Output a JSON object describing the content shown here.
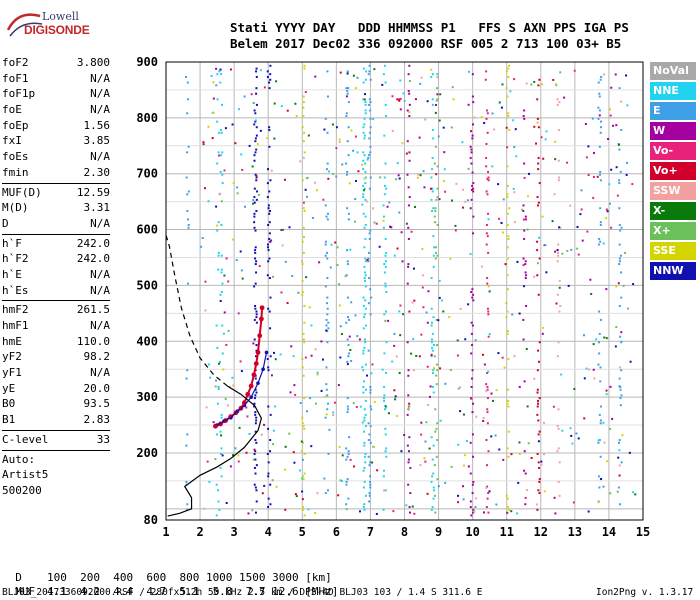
{
  "header": {
    "labels": "Stati YYYY DAY   DDD HHMMSS P1   FFS S AXN PPS IGA PS",
    "values": "Belem 2017 Dec02 336 092000 RSF 005 2 713 100 03+ B5"
  },
  "logo": {
    "line1": "Lowell",
    "line2": "DIGISONDE"
  },
  "parameters": [
    {
      "name": "foF2",
      "value": "3.800"
    },
    {
      "name": "foF1",
      "value": "N/A"
    },
    {
      "name": "foF1p",
      "value": "N/A"
    },
    {
      "name": "foE",
      "value": "N/A"
    },
    {
      "name": "foEp",
      "value": "1.56"
    },
    {
      "name": "fxI",
      "value": "3.85"
    },
    {
      "name": "foEs",
      "value": "N/A"
    },
    {
      "name": "fmin",
      "value": "2.30"
    },
    {
      "divider": true
    },
    {
      "name": "MUF(D)",
      "value": "12.59"
    },
    {
      "name": "M(D)",
      "value": "3.31"
    },
    {
      "name": "D",
      "value": "N/A"
    },
    {
      "divider": true
    },
    {
      "name": "h`F",
      "value": "242.0"
    },
    {
      "name": "h`F2",
      "value": "242.0"
    },
    {
      "name": "h`E",
      "value": "N/A"
    },
    {
      "name": "h`Es",
      "value": "N/A"
    },
    {
      "divider": true
    },
    {
      "name": "hmF2",
      "value": "261.5"
    },
    {
      "name": "hmF1",
      "value": "N/A"
    },
    {
      "name": "hmE",
      "value": "110.0"
    },
    {
      "name": "yF2",
      "value": "98.2"
    },
    {
      "name": "yF1",
      "value": "N/A"
    },
    {
      "name": "yE",
      "value": "20.0"
    },
    {
      "name": "B0",
      "value": "93.5"
    },
    {
      "name": "B1",
      "value": "2.83"
    },
    {
      "divider": true
    },
    {
      "name": "C-level",
      "value": "33"
    },
    {
      "divider": true
    },
    {
      "text": "Auto:"
    },
    {
      "text": "Artist5"
    },
    {
      "text": "500200"
    }
  ],
  "legend": [
    {
      "label": "NoVal",
      "color": "#a9a9a9"
    },
    {
      "label": "NNE",
      "color": "#22d3f0"
    },
    {
      "label": "E",
      "color": "#3fa0e8"
    },
    {
      "label": "W",
      "color": "#a3009f"
    },
    {
      "label": "Vo-",
      "color": "#e8217a"
    },
    {
      "label": "Vo+",
      "color": "#d0002a"
    },
    {
      "label": "SSW",
      "color": "#f2a0a0"
    },
    {
      "label": "X-",
      "color": "#0a7a0a"
    },
    {
      "label": "X+",
      "color": "#6cc05c"
    },
    {
      "label": "SSE",
      "color": "#d4d400"
    },
    {
      "label": "NNW",
      "color": "#1010b0"
    }
  ],
  "muf_table": {
    "d_label": "D",
    "d_values": "100  200  400  600  800 1000 1500 3000 [km]",
    "muf_label": "MUF",
    "muf_values": "4.1  4.2  4.4  4.7  5.1  5.8  7.7 12.6 [MHz]"
  },
  "footer": {
    "left": "BLJ03_2017336092000.RSF / 280fx512h 50 kHz 2.5 km / DPS-4D BLJ03 103 / 1.4 S 311.6 E",
    "right": "Ion2Png v. 1.3.17"
  },
  "chart_data": {
    "type": "scatter",
    "xlim": [
      1,
      15
    ],
    "ylim": [
      80,
      900
    ],
    "x_ticks": [
      "1",
      "2",
      "3",
      "4",
      "5",
      "6",
      "7",
      "8",
      "9",
      "10",
      "11",
      "12",
      "13",
      "14",
      "15"
    ],
    "y_ticks": [
      "80",
      "200",
      "300",
      "400",
      "500",
      "600",
      "700",
      "800",
      "900"
    ],
    "grid": true,
    "profile_solid": [
      [
        1.05,
        87
      ],
      [
        1.4,
        92
      ],
      [
        1.75,
        100
      ],
      [
        1.75,
        120
      ],
      [
        1.55,
        140
      ],
      [
        2.0,
        160
      ],
      [
        2.5,
        175
      ],
      [
        2.9,
        190
      ],
      [
        3.3,
        210
      ],
      [
        3.7,
        240
      ],
      [
        3.8,
        262
      ],
      [
        3.6,
        285
      ],
      [
        3.2,
        305
      ],
      [
        2.8,
        320
      ]
    ],
    "profile_dashed": [
      [
        2.8,
        320
      ],
      [
        2.4,
        340
      ],
      [
        2.0,
        370
      ],
      [
        1.7,
        410
      ],
      [
        1.45,
        460
      ],
      [
        1.25,
        520
      ],
      [
        1.1,
        570
      ],
      [
        1.0,
        590
      ]
    ],
    "trace_o": [
      [
        2.45,
        248
      ],
      [
        2.6,
        252
      ],
      [
        2.75,
        258
      ],
      [
        2.9,
        265
      ],
      [
        3.05,
        272
      ],
      [
        3.2,
        280
      ],
      [
        3.3,
        290
      ],
      [
        3.4,
        305
      ],
      [
        3.5,
        320
      ],
      [
        3.58,
        340
      ],
      [
        3.65,
        360
      ],
      [
        3.7,
        380
      ],
      [
        3.75,
        410
      ],
      [
        3.8,
        440
      ],
      [
        3.82,
        460
      ]
    ],
    "trace_x": [
      [
        2.5,
        250
      ],
      [
        2.7,
        257
      ],
      [
        2.9,
        263
      ],
      [
        3.1,
        275
      ],
      [
        3.3,
        285
      ],
      [
        3.5,
        300
      ],
      [
        3.7,
        325
      ],
      [
        3.85,
        350
      ],
      [
        3.95,
        380
      ]
    ]
  }
}
